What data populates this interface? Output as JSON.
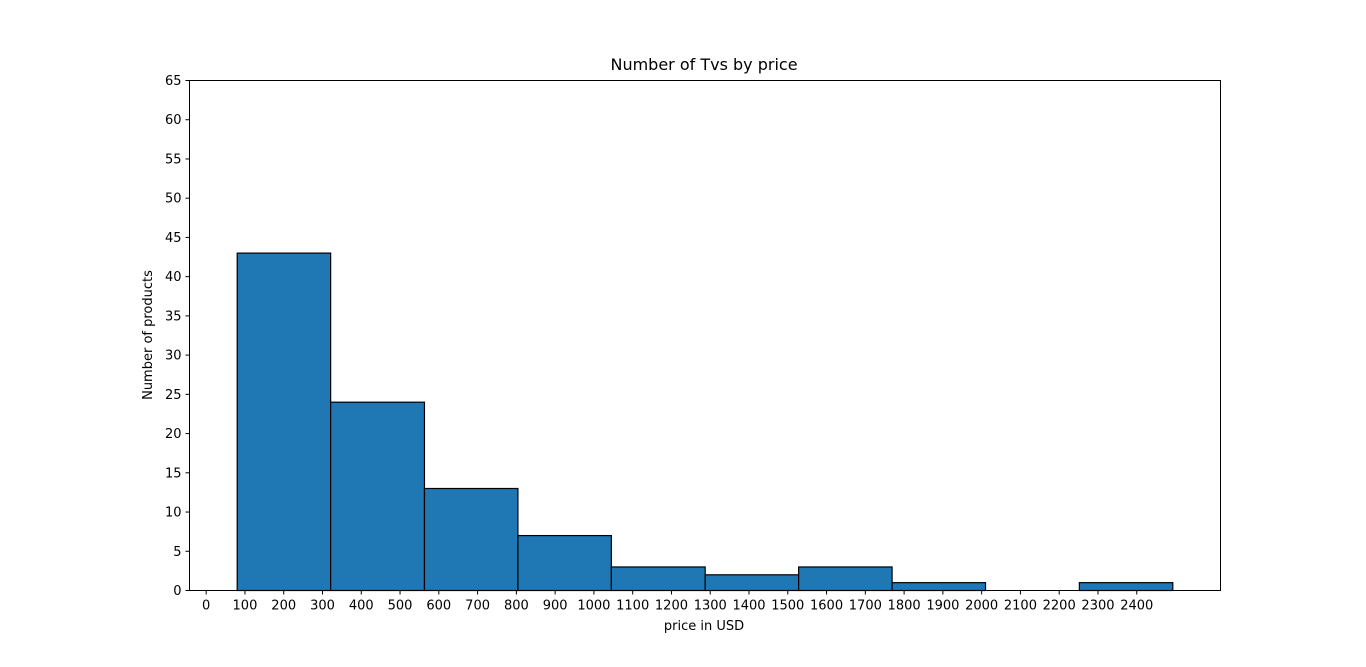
{
  "chart_data": {
    "type": "bar",
    "title": "Number of Tvs by price",
    "xlabel": "price in USD",
    "ylabel": "Number of products",
    "bins": [
      {
        "start": 80,
        "end": 321,
        "count": 43
      },
      {
        "start": 321,
        "end": 563,
        "count": 24
      },
      {
        "start": 563,
        "end": 804,
        "count": 13
      },
      {
        "start": 804,
        "end": 1045,
        "count": 7
      },
      {
        "start": 1045,
        "end": 1287,
        "count": 3
      },
      {
        "start": 1287,
        "end": 1528,
        "count": 2
      },
      {
        "start": 1528,
        "end": 1769,
        "count": 3
      },
      {
        "start": 1769,
        "end": 2010,
        "count": 1
      },
      {
        "start": 2010,
        "end": 2252,
        "count": 0
      },
      {
        "start": 2252,
        "end": 2493,
        "count": 1
      }
    ],
    "xlim": [
      -43,
      2616
    ],
    "ylim": [
      0,
      65
    ],
    "xticks": [
      0,
      100,
      200,
      300,
      400,
      500,
      600,
      700,
      800,
      900,
      1000,
      1100,
      1200,
      1300,
      1400,
      1500,
      1600,
      1700,
      1800,
      1900,
      2000,
      2100,
      2200,
      2300,
      2400
    ],
    "yticks": [
      0,
      5,
      10,
      15,
      20,
      25,
      30,
      35,
      40,
      45,
      50,
      55,
      60,
      65
    ],
    "bar_color": "#1f77b4",
    "edge_color": "#000000",
    "grid": false,
    "legend": false
  }
}
